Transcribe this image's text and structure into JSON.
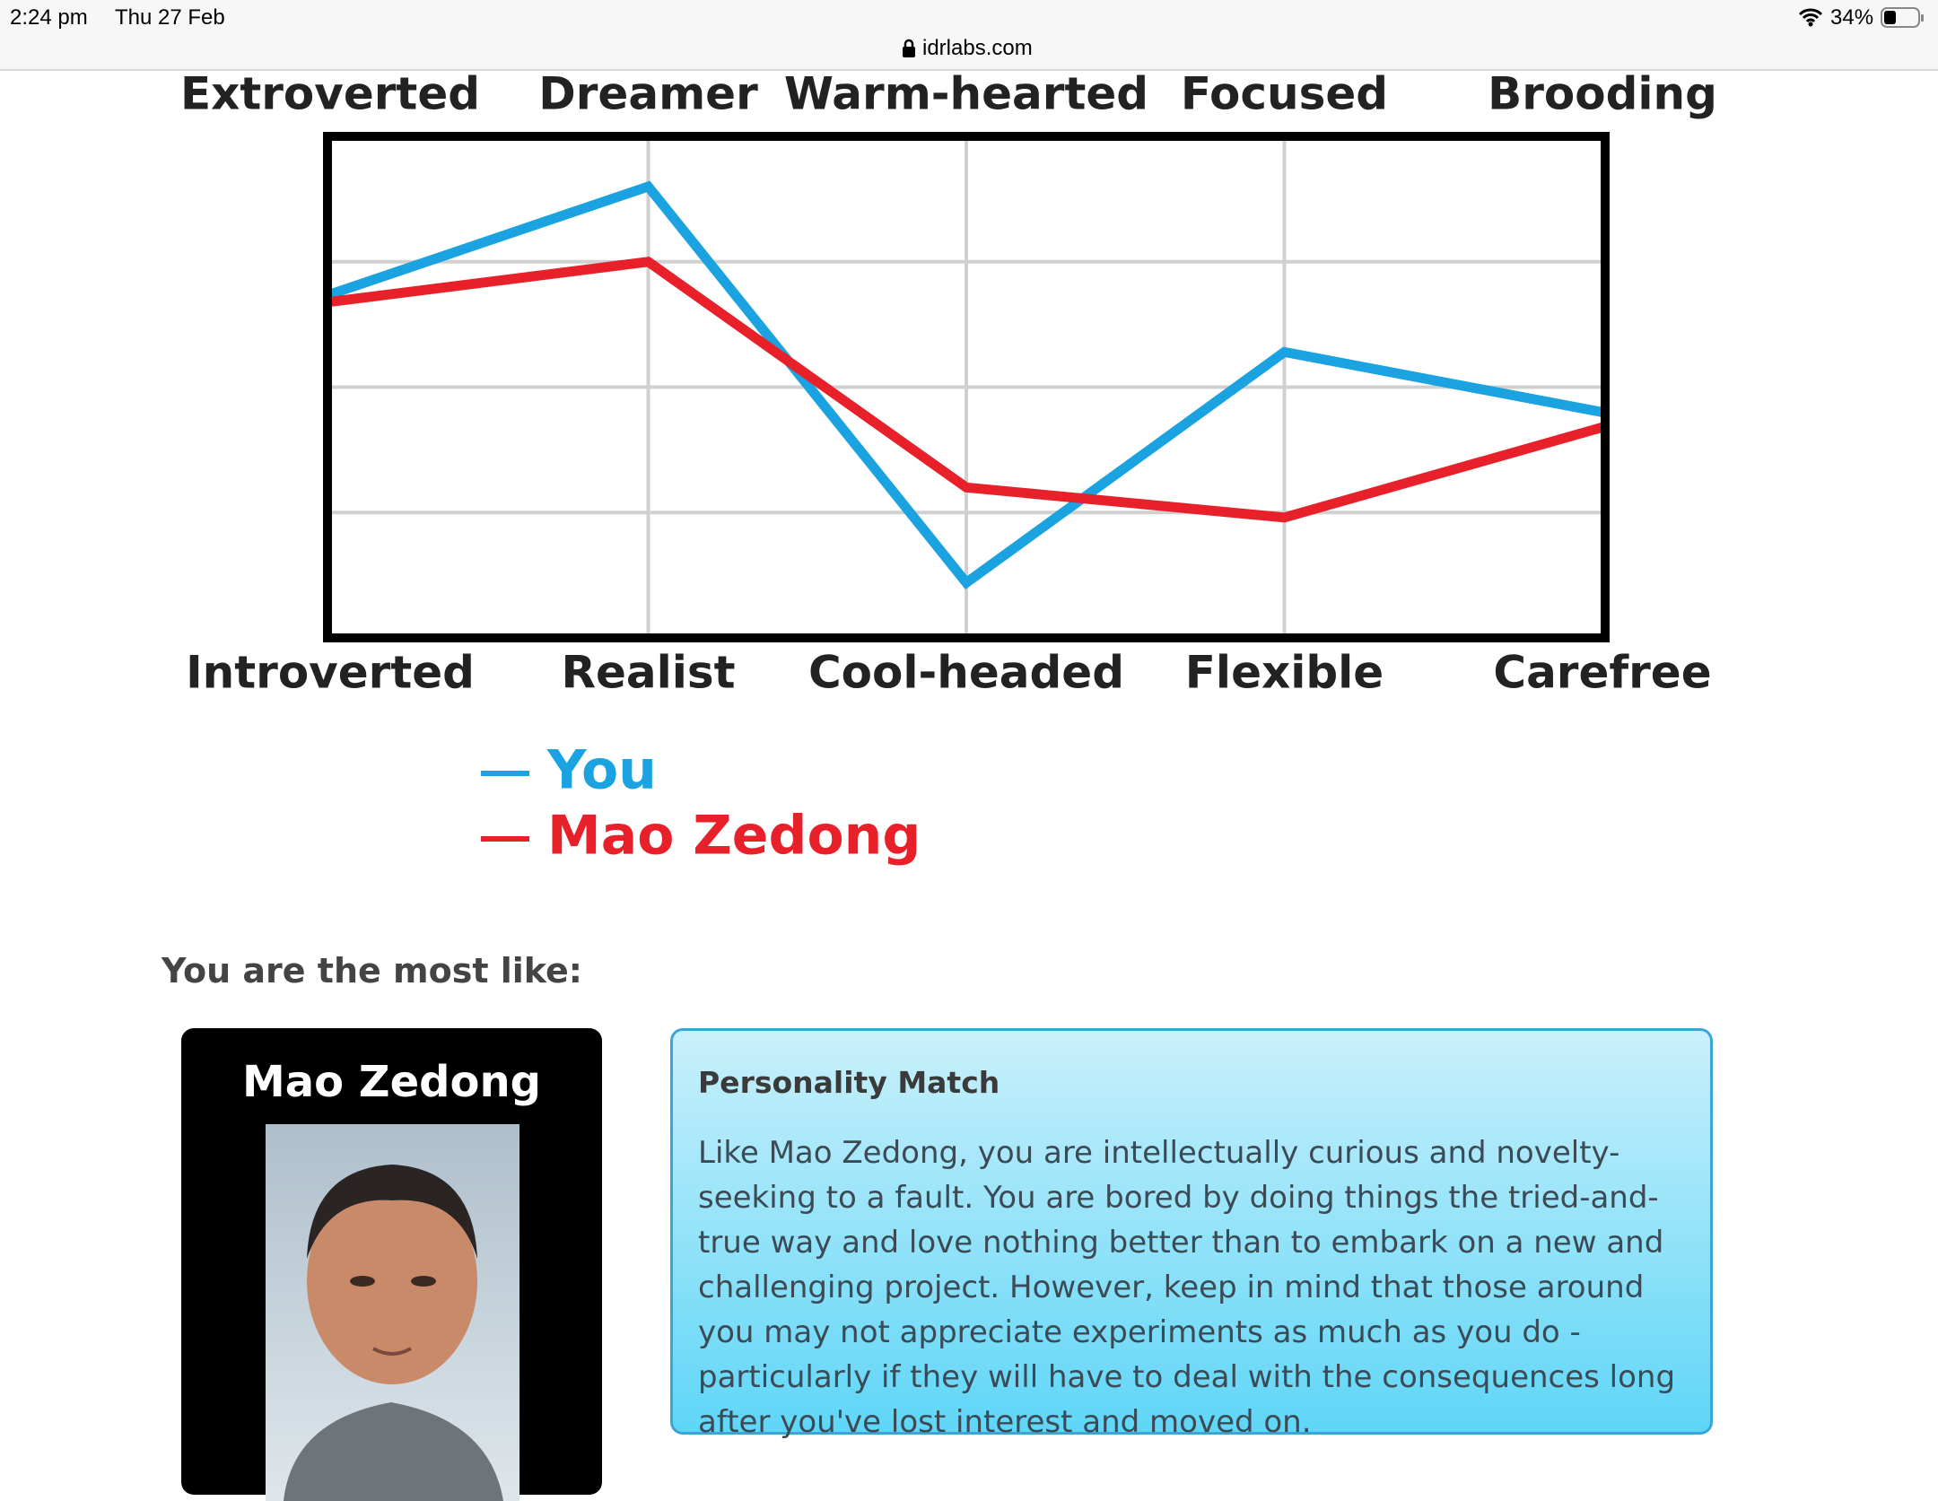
{
  "status_bar": {
    "time": "2:24 pm",
    "date": "Thu 27 Feb",
    "battery": "34%"
  },
  "url": "idrlabs.com",
  "chart_data": {
    "type": "line",
    "categories": [
      "Extroverted",
      "Dreamer",
      "Warm-hearted",
      "Focused",
      "Brooding"
    ],
    "bottom_categories": [
      "Introverted",
      "Realist",
      "Cool-headed",
      "Flexible",
      "Carefree"
    ],
    "ylim": [
      0,
      100
    ],
    "series": [
      {
        "name": "You",
        "color": "#1aa3e0",
        "values": [
          68.5,
          90,
          11,
          57,
          45
        ]
      },
      {
        "name": "Mao Zedong",
        "color": "#e8202a",
        "values": [
          67,
          75,
          30,
          24,
          42
        ]
      }
    ]
  },
  "match_heading": "You are the most like:",
  "card": {
    "name": "Mao Zedong"
  },
  "info_box": {
    "title": "Personality Match",
    "text": "Like Mao Zedong, you are intellectually curious and novelty-seeking to a fault. You are bored by doing things the tried-and-true way and love nothing better than to embark on a new and challenging project. However, keep in mind that those around you may not appreciate experiments as much as you do - particularly if they will have to deal with the consequences long after you've lost interest and moved on."
  }
}
